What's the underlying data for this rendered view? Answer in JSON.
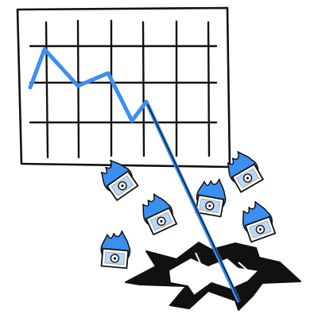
{
  "illustration": {
    "subject": "crashing-line-chart-with-burning-money",
    "colors": {
      "ink": "#111111",
      "accent": "#3b8ff0",
      "paper": "#ffffff"
    },
    "icons": {
      "chart": "grid-chart-icon",
      "line": "falling-trend-line-icon",
      "bills": "burning-bill-icon",
      "hole": "ground-crack-icon"
    },
    "bill_count": 6
  }
}
